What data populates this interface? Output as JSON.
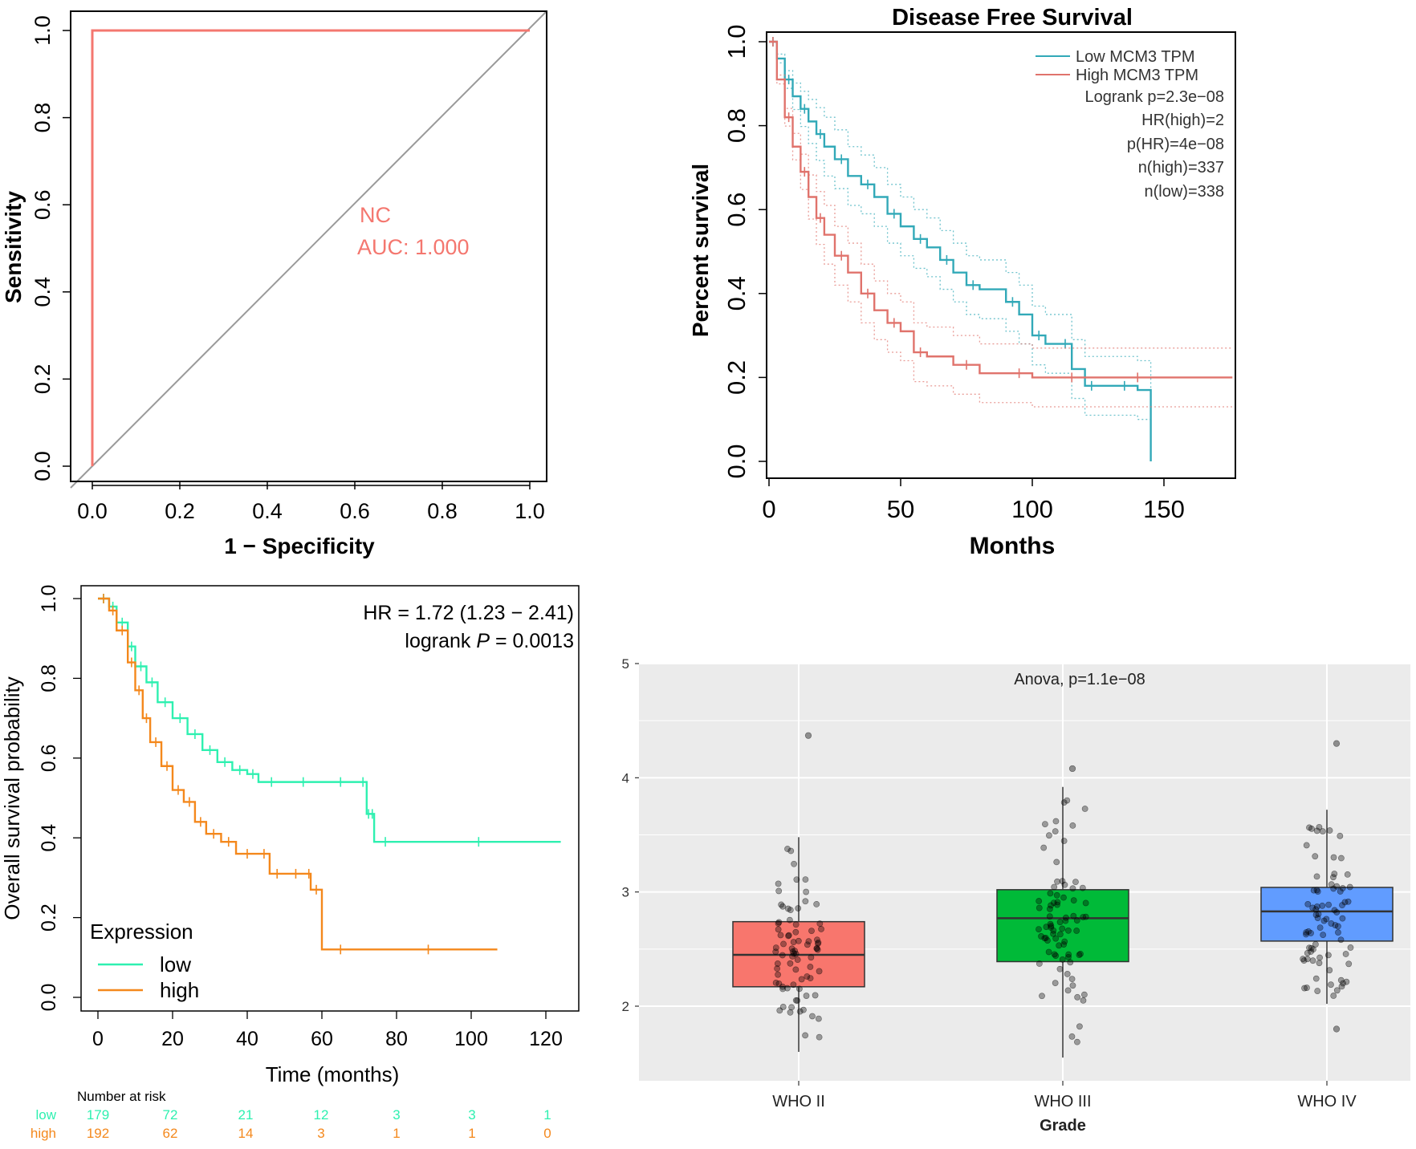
{
  "chart_data": [
    {
      "id": "roc",
      "type": "line",
      "title": "",
      "xlabel": "1 − Specificity",
      "ylabel": "Sensitivity",
      "xlim": [
        0,
        1
      ],
      "ylim": [
        0,
        1
      ],
      "xticks": [
        "0.0",
        "0.2",
        "0.4",
        "0.6",
        "0.8",
        "1.0"
      ],
      "yticks": [
        "0.0",
        "0.2",
        "0.4",
        "0.6",
        "0.8",
        "1.0"
      ],
      "series": [
        {
          "name": "NC",
          "color": "#f4776f",
          "x": [
            0,
            0,
            1
          ],
          "y": [
            0,
            1,
            1
          ]
        }
      ],
      "diagonal": {
        "x": [
          0,
          1
        ],
        "y": [
          0,
          1
        ],
        "color": "#9a9a9a"
      },
      "annotation": {
        "label": "NC",
        "auc": "AUC: 1.000"
      }
    },
    {
      "id": "dfs",
      "type": "line",
      "title": "Disease Free Survival",
      "xlabel": "Months",
      "ylabel": "Percent survival",
      "xlim": [
        0,
        180
      ],
      "ylim": [
        0,
        1
      ],
      "xticks": [
        "0",
        "50",
        "100",
        "150"
      ],
      "yticks": [
        "0.0",
        "0.2",
        "0.4",
        "0.6",
        "0.8",
        "1.0"
      ],
      "legend": [
        {
          "name": "Low MCM3 TPM",
          "color": "#32a9b8"
        },
        {
          "name": "High MCM3 TPM",
          "color": "#e0736c"
        }
      ],
      "stats": [
        "Logrank p=2.3e−08",
        "HR(high)=2",
        "p(HR)=4e−08",
        "n(high)=337",
        "n(low)=338"
      ],
      "series": [
        {
          "name": "Low MCM3 TPM",
          "color": "#32a9b8",
          "x": [
            0,
            3,
            6,
            9,
            12,
            15,
            18,
            21,
            25,
            30,
            35,
            40,
            45,
            50,
            55,
            60,
            65,
            70,
            75,
            80,
            90,
            95,
            100,
            105,
            110,
            115,
            120,
            125,
            130,
            140,
            145
          ],
          "y": [
            1,
            0.96,
            0.91,
            0.87,
            0.84,
            0.81,
            0.78,
            0.75,
            0.72,
            0.68,
            0.66,
            0.63,
            0.59,
            0.56,
            0.53,
            0.51,
            0.48,
            0.45,
            0.42,
            0.41,
            0.38,
            0.35,
            0.3,
            0.28,
            0.28,
            0.22,
            0.18,
            0.18,
            0.18,
            0.17,
            0.0
          ]
        },
        {
          "name": "High MCM3 TPM",
          "color": "#e0736c",
          "x": [
            0,
            3,
            6,
            9,
            12,
            15,
            18,
            21,
            25,
            30,
            35,
            40,
            45,
            50,
            55,
            60,
            70,
            80,
            90,
            100,
            110,
            120,
            130,
            150,
            176
          ],
          "y": [
            1,
            0.91,
            0.82,
            0.75,
            0.69,
            0.63,
            0.58,
            0.54,
            0.49,
            0.45,
            0.4,
            0.36,
            0.33,
            0.31,
            0.26,
            0.25,
            0.23,
            0.21,
            0.21,
            0.2,
            0.2,
            0.2,
            0.2,
            0.2,
            0.2
          ]
        }
      ]
    },
    {
      "id": "os",
      "type": "line",
      "title": "",
      "xlabel": "Time (months)",
      "ylabel": "Overall survival probability",
      "xlim": [
        0,
        125
      ],
      "ylim": [
        0,
        1
      ],
      "xticks": [
        "0",
        "20",
        "40",
        "60",
        "80",
        "100",
        "120"
      ],
      "yticks": [
        "0.0",
        "0.2",
        "0.4",
        "0.6",
        "0.8",
        "1.0"
      ],
      "hr_text": "HR = 1.72 (1.23 − 2.41)",
      "logrank_prefix": "logrank ",
      "logrank_p": "P",
      "logrank_suffix": " = 0.0013",
      "legend_title": "Expression",
      "legend": [
        {
          "name": "low",
          "color": "#2ef0b0"
        },
        {
          "name": "high",
          "color": "#f4881c"
        }
      ],
      "series": [
        {
          "name": "low",
          "color": "#2ef0b0",
          "x": [
            0,
            3,
            5,
            8,
            10,
            13,
            16,
            20,
            24,
            28,
            32,
            36,
            40,
            43,
            50,
            60,
            70,
            72,
            73,
            74,
            80,
            124
          ],
          "y": [
            1,
            0.98,
            0.94,
            0.88,
            0.83,
            0.79,
            0.74,
            0.7,
            0.66,
            0.62,
            0.59,
            0.57,
            0.56,
            0.54,
            0.54,
            0.54,
            0.54,
            0.46,
            0.46,
            0.39,
            0.39,
            0.39
          ]
        },
        {
          "name": "high",
          "color": "#f4881c",
          "x": [
            0,
            3,
            5,
            8,
            10,
            12,
            14,
            17,
            20,
            23,
            26,
            29,
            33,
            37,
            43,
            46,
            50,
            56,
            57,
            60,
            70,
            107
          ],
          "y": [
            1,
            0.97,
            0.92,
            0.84,
            0.77,
            0.7,
            0.64,
            0.58,
            0.52,
            0.49,
            0.44,
            0.41,
            0.39,
            0.36,
            0.36,
            0.31,
            0.31,
            0.31,
            0.27,
            0.12,
            0.12,
            0.12
          ]
        }
      ],
      "risk_table": {
        "header": "Number at risk",
        "rows": [
          {
            "label": "low",
            "color": "#2ef0b0",
            "values": [
              "179",
              "72",
              "21",
              "12",
              "3",
              "3",
              "1"
            ]
          },
          {
            "label": "high",
            "color": "#f4881c",
            "values": [
              "192",
              "62",
              "14",
              "3",
              "1",
              "1",
              "0"
            ]
          }
        ]
      }
    },
    {
      "id": "grade",
      "type": "box",
      "title": "Anova, p=1.1e−08",
      "xlabel": "Grade",
      "ylabel": "",
      "ylim": [
        1.5,
        5
      ],
      "yticks": [
        "2",
        "3",
        "4",
        "5"
      ],
      "categories": [
        "WHO II",
        "WHO III",
        "WHO IV"
      ],
      "boxes": [
        {
          "name": "WHO II",
          "color": "#f8766d",
          "min": 1.6,
          "q1": 2.17,
          "median": 2.45,
          "q3": 2.74,
          "max": 3.48
        },
        {
          "name": "WHO III",
          "color": "#00ba38",
          "min": 1.55,
          "q1": 2.39,
          "median": 2.77,
          "q3": 3.02,
          "max": 3.92
        },
        {
          "name": "WHO IV",
          "color": "#619cff",
          "min": 2.02,
          "q1": 2.57,
          "median": 2.83,
          "q3": 3.04,
          "max": 3.72
        }
      ],
      "outliers": [
        {
          "group": 0,
          "value": 4.37
        },
        {
          "group": 1,
          "value": 4.08
        },
        {
          "group": 2,
          "value": 4.3
        },
        {
          "group": 2,
          "value": 1.8
        }
      ]
    }
  ]
}
